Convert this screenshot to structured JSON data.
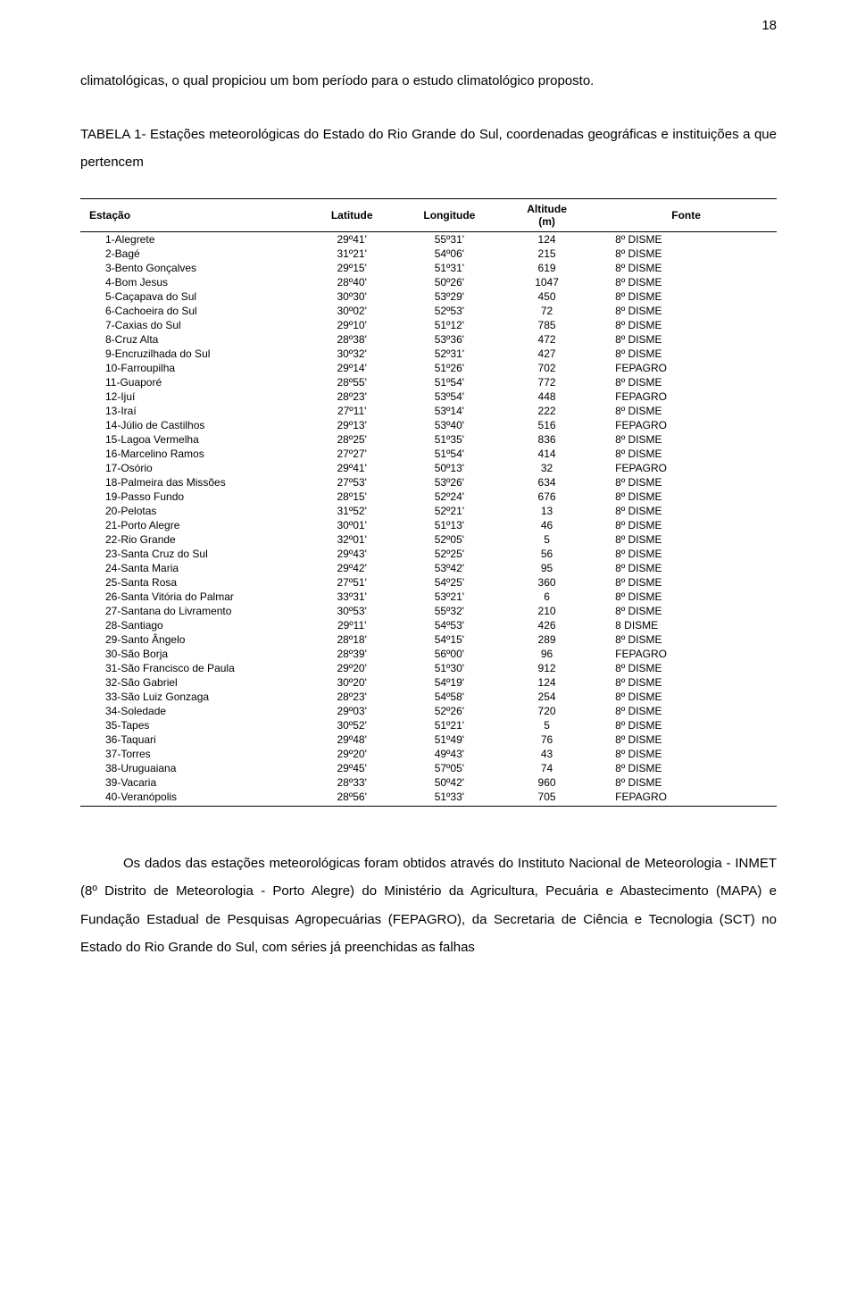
{
  "page_number": "18",
  "intro_text": "climatológicas, o qual propiciou um bom período para o estudo climatológico proposto.",
  "table_title": "TABELA 1- Estações meteorológicas do Estado do Rio Grande do Sul, coordenadas geográficas e instituições a que pertencem",
  "table": {
    "columns": [
      "Estação",
      "Latitude",
      "Longitude",
      "Altitude (m)",
      "Fonte"
    ],
    "col_widths": [
      "32%",
      "14%",
      "14%",
      "14%",
      "26%"
    ],
    "rows": [
      [
        "1-Alegrete",
        "29º41'",
        "55º31'",
        "124",
        "8º DISME"
      ],
      [
        "2-Bagé",
        "31º21'",
        "54º06'",
        "215",
        "8º DISME"
      ],
      [
        "3-Bento Gonçalves",
        "29º15'",
        "51º31'",
        "619",
        "8º DISME"
      ],
      [
        "4-Bom Jesus",
        "28º40'",
        "50º26'",
        "1047",
        "8º DISME"
      ],
      [
        "5-Caçapava do Sul",
        "30º30'",
        "53º29'",
        "450",
        "8º DISME"
      ],
      [
        "6-Cachoeira do Sul",
        "30º02'",
        "52º53'",
        "72",
        "8º DISME"
      ],
      [
        "7-Caxias do Sul",
        "29º10'",
        "51º12'",
        "785",
        "8º DISME"
      ],
      [
        "8-Cruz Alta",
        "28º38'",
        "53º36'",
        "472",
        "8º DISME"
      ],
      [
        "9-Encruzilhada do Sul",
        "30º32'",
        "52º31'",
        "427",
        "8º DISME"
      ],
      [
        "10-Farroupilha",
        "29º14'",
        "51º26'",
        "702",
        "FEPAGRO"
      ],
      [
        "11-Guaporé",
        "28º55'",
        "51º54'",
        "772",
        "8º DISME"
      ],
      [
        "12-Ijuí",
        "28º23'",
        "53º54'",
        "448",
        "FEPAGRO"
      ],
      [
        "13-Iraí",
        "27º11'",
        "53º14'",
        "222",
        "8º DISME"
      ],
      [
        "14-Júlio de Castilhos",
        "29º13'",
        "53º40'",
        "516",
        "FEPAGRO"
      ],
      [
        "15-Lagoa Vermelha",
        "28º25'",
        "51º35'",
        "836",
        "8º DISME"
      ],
      [
        "16-Marcelino Ramos",
        "27º27'",
        "51º54'",
        "414",
        "8º DISME"
      ],
      [
        "17-Osório",
        "29º41'",
        "50º13'",
        "32",
        "FEPAGRO"
      ],
      [
        "18-Palmeira das Missões",
        "27º53'",
        "53º26'",
        "634",
        "8º DISME"
      ],
      [
        "19-Passo Fundo",
        "28º15'",
        "52º24'",
        "676",
        "8º DISME"
      ],
      [
        "20-Pelotas",
        "31º52'",
        "52º21'",
        "13",
        "8º DISME"
      ],
      [
        "21-Porto Alegre",
        "30º01'",
        "51º13'",
        "46",
        "8º DISME"
      ],
      [
        "22-Rio Grande",
        "32º01'",
        "52º05'",
        "5",
        "8º DISME"
      ],
      [
        "23-Santa Cruz do Sul",
        "29º43'",
        "52º25'",
        "56",
        "8º DISME"
      ],
      [
        "24-Santa Maria",
        "29º42'",
        "53º42'",
        "95",
        "8º DISME"
      ],
      [
        "25-Santa Rosa",
        "27º51'",
        "54º25'",
        "360",
        "8º DISME"
      ],
      [
        "26-Santa Vitória do Palmar",
        "33º31'",
        "53º21'",
        "6",
        "8º DISME"
      ],
      [
        "27-Santana do Livramento",
        "30º53'",
        "55º32'",
        "210",
        "8º DISME"
      ],
      [
        "28-Santiago",
        "29º11'",
        "54º53'",
        "426",
        "8 DISME"
      ],
      [
        "29-Santo Ângelo",
        "28º18'",
        "54º15'",
        "289",
        "8º DISME"
      ],
      [
        "30-São Borja",
        "28º39'",
        "56º00'",
        "96",
        "FEPAGRO"
      ],
      [
        "31-São Francisco de Paula",
        "29º20'",
        "51º30'",
        "912",
        "8º DISME"
      ],
      [
        "32-São Gabriel",
        "30º20'",
        "54º19'",
        "124",
        "8º DISME"
      ],
      [
        "33-São Luiz Gonzaga",
        "28º23'",
        "54º58'",
        "254",
        "8º DISME"
      ],
      [
        "34-Soledade",
        "29º03'",
        "52º26'",
        "720",
        "8º DISME"
      ],
      [
        "35-Tapes",
        "30º52'",
        "51º21'",
        "5",
        "8º DISME"
      ],
      [
        "36-Taquari",
        "29º48'",
        "51º49'",
        "76",
        "8º DISME"
      ],
      [
        "37-Torres",
        "29º20'",
        "49º43'",
        "43",
        "8º DISME"
      ],
      [
        "38-Uruguaiana",
        "29º45'",
        "57º05'",
        "74",
        "8º DISME"
      ],
      [
        "39-Vacaria",
        "28º33'",
        "50º42'",
        "960",
        "8º DISME"
      ],
      [
        "40-Veranópolis",
        "28º56'",
        "51º33'",
        "705",
        "FEPAGRO"
      ]
    ]
  },
  "outro_text": "Os dados das estações meteorológicas foram obtidos através do Instituto Nacional de Meteorologia - INMET (8º Distrito de Meteorologia - Porto Alegre) do Ministério da Agricultura, Pecuária e Abastecimento (MAPA) e Fundação Estadual de Pesquisas Agropecuárias (FEPAGRO), da Secretaria de Ciência e Tecnologia (SCT) no Estado do Rio Grande do Sul, com séries já preenchidas as falhas"
}
